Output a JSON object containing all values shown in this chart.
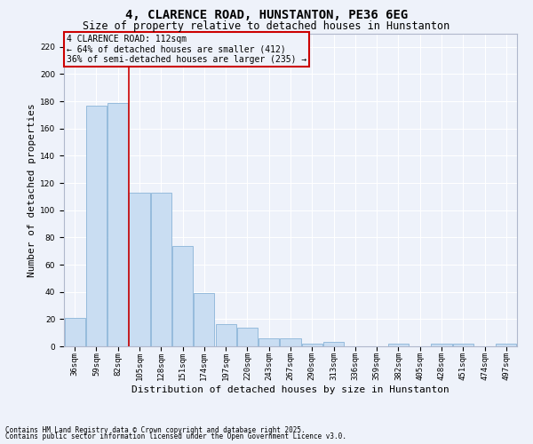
{
  "title": "4, CLARENCE ROAD, HUNSTANTON, PE36 6EG",
  "subtitle": "Size of property relative to detached houses in Hunstanton",
  "xlabel": "Distribution of detached houses by size in Hunstanton",
  "ylabel": "Number of detached properties",
  "categories": [
    "36sqm",
    "59sqm",
    "82sqm",
    "105sqm",
    "128sqm",
    "151sqm",
    "174sqm",
    "197sqm",
    "220sqm",
    "243sqm",
    "267sqm",
    "290sqm",
    "313sqm",
    "336sqm",
    "359sqm",
    "382sqm",
    "405sqm",
    "428sqm",
    "451sqm",
    "474sqm",
    "497sqm"
  ],
  "values": [
    21,
    177,
    179,
    113,
    113,
    74,
    39,
    16,
    14,
    6,
    6,
    2,
    3,
    0,
    0,
    2,
    0,
    2,
    2,
    0,
    2
  ],
  "bar_color": "#c9ddf2",
  "bar_edge_color": "#8ab4d8",
  "property_line_index": 3,
  "property_label": "4 CLARENCE ROAD: 112sqm",
  "annotation_line1": "← 64% of detached houses are smaller (412)",
  "annotation_line2": "36% of semi-detached houses are larger (235) →",
  "annotation_box_color": "#cc0000",
  "line_color": "#cc0000",
  "ylim": [
    0,
    230
  ],
  "yticks": [
    0,
    20,
    40,
    60,
    80,
    100,
    120,
    140,
    160,
    180,
    200,
    220
  ],
  "background_color": "#eef2fa",
  "grid_color": "#ffffff",
  "footer1": "Contains HM Land Registry data © Crown copyright and database right 2025.",
  "footer2": "Contains public sector information licensed under the Open Government Licence v3.0.",
  "title_fontsize": 10,
  "subtitle_fontsize": 8.5,
  "annotation_fontsize": 7,
  "axis_label_fontsize": 8,
  "tick_fontsize": 6.5,
  "footer_fontsize": 5.5
}
